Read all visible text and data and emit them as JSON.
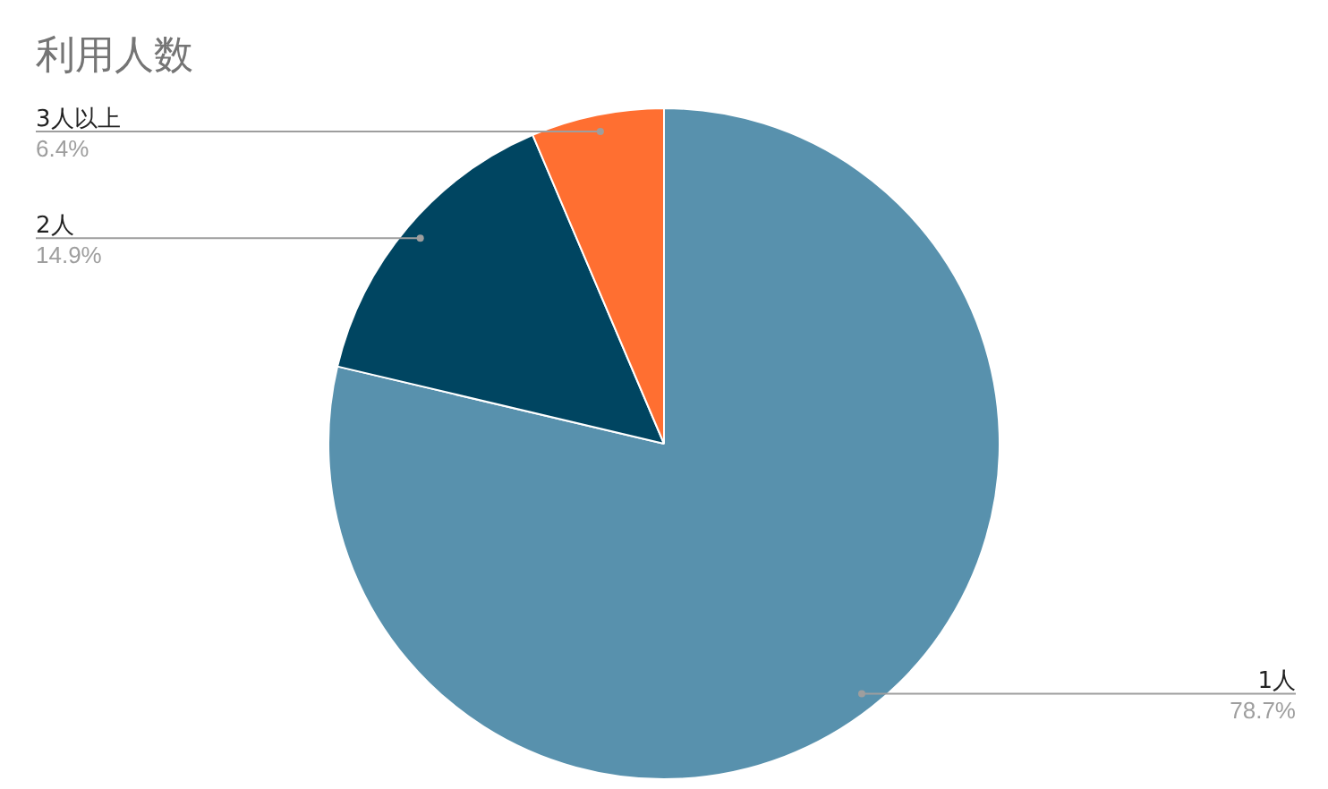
{
  "chart_data": {
    "type": "pie",
    "title": "利用人数",
    "categories": [
      "1人",
      "2人",
      "3人以上"
    ],
    "values": [
      78.7,
      14.9,
      6.4
    ],
    "colors": [
      "#5891ad",
      "#004561",
      "#ff6f31"
    ],
    "value_labels": [
      "78.7%",
      "14.9%",
      "6.4%"
    ],
    "legend": false
  }
}
